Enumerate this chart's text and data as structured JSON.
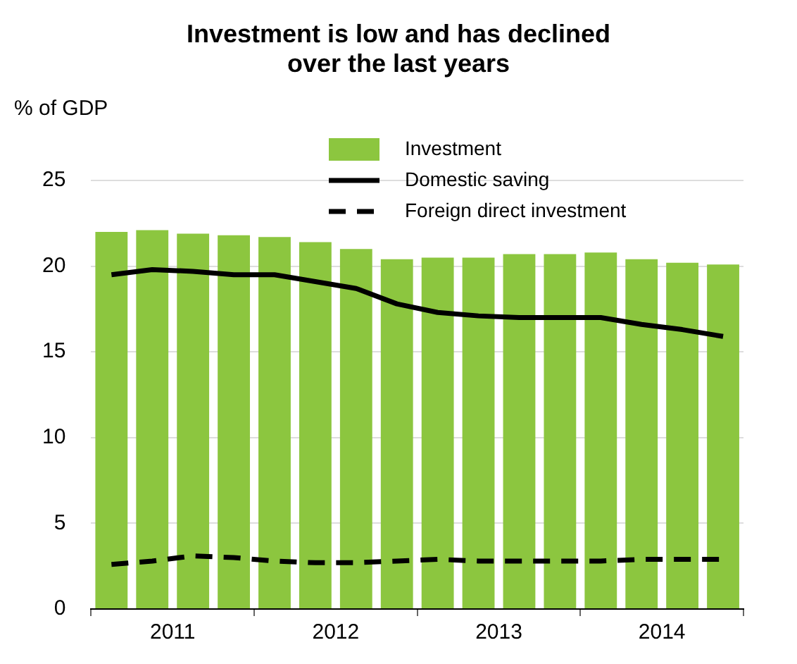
{
  "chart_data": {
    "type": "bar",
    "title": "Investment is low and has declined\nover the last years",
    "ylabel": "% of GDP",
    "x": [
      2011.125,
      2011.375,
      2011.625,
      2011.875,
      2012.125,
      2012.375,
      2012.625,
      2012.875,
      2013.125,
      2013.375,
      2013.625,
      2013.875,
      2014.125,
      2014.375,
      2014.625,
      2014.875
    ],
    "series": [
      {
        "name": "Investment",
        "color": "#8cc63f",
        "values": [
          22.0,
          22.1,
          21.9,
          21.8,
          21.7,
          21.4,
          21.0,
          20.4,
          20.5,
          20.5,
          20.7,
          20.7,
          20.8,
          20.4,
          20.2,
          20.1
        ]
      },
      {
        "name": "Domestic saving",
        "type": "line",
        "color": "#000000",
        "line_style": "solid",
        "values": [
          19.5,
          19.8,
          19.7,
          19.5,
          19.5,
          19.1,
          18.7,
          17.8,
          17.3,
          17.1,
          17.0,
          17.0,
          17.0,
          16.6,
          16.3,
          15.9
        ]
      },
      {
        "name": "Foreign direct investment",
        "type": "line",
        "color": "#000000",
        "line_style": "dashed",
        "values": [
          2.6,
          2.8,
          3.1,
          3.0,
          2.8,
          2.7,
          2.7,
          2.8,
          2.9,
          2.8,
          2.8,
          2.8,
          2.8,
          2.9,
          2.9,
          2.9
        ]
      }
    ],
    "xlim": [
      2011,
      2015
    ],
    "xticks": [
      {
        "value": 2011,
        "label": null
      },
      {
        "value": 2011.5,
        "label": "2011"
      },
      {
        "value": 2012,
        "label": null
      },
      {
        "value": 2012.5,
        "label": "2012"
      },
      {
        "value": 2013,
        "label": null
      },
      {
        "value": 2013.5,
        "label": "2013"
      },
      {
        "value": 2014,
        "label": null
      },
      {
        "value": 2014.5,
        "label": "2014"
      },
      {
        "value": 2015,
        "label": null
      }
    ],
    "ylim": [
      0,
      25
    ],
    "yticks": [
      0,
      5,
      10,
      15,
      20,
      25
    ],
    "grid": "y",
    "legend": "top",
    "marker": "none"
  }
}
